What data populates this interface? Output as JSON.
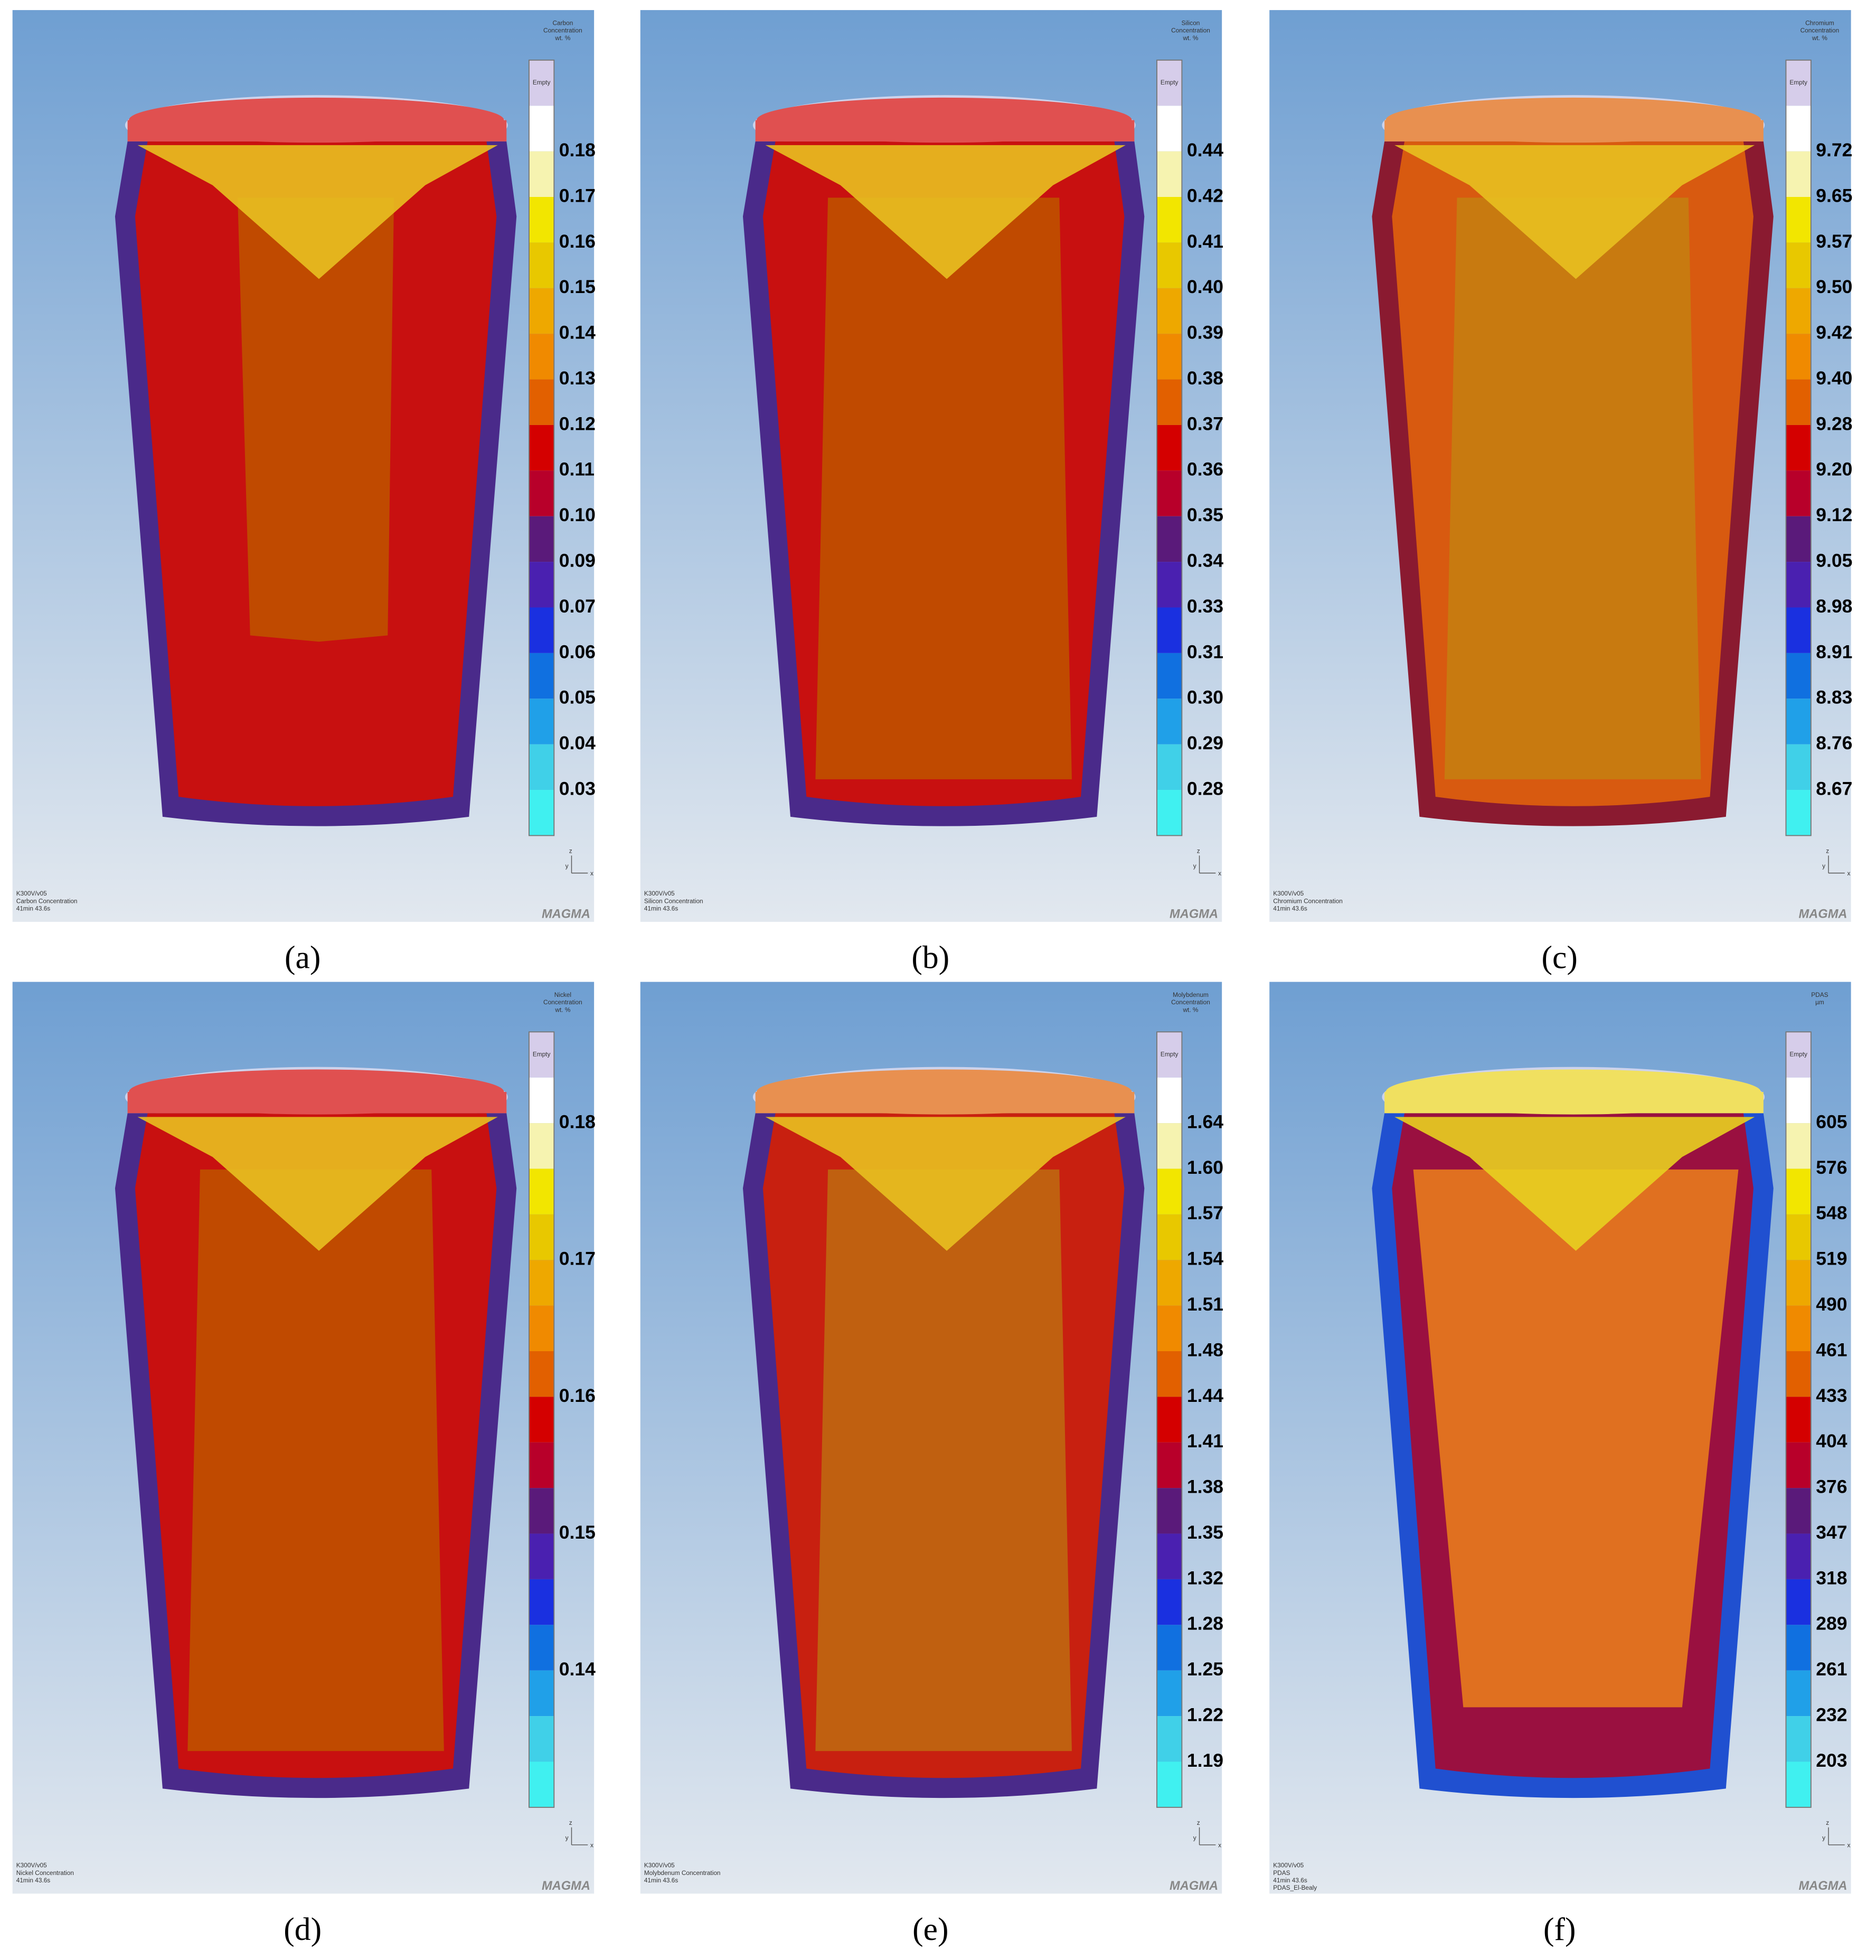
{
  "panels": [
    {
      "caption": "(a)",
      "legend_title": [
        "Carbon",
        "Concentration",
        "wt. %"
      ],
      "empty": "Empty",
      "legend_labels": [
        "0.18",
        "0.17",
        "0.16",
        "0.15",
        "0.14",
        "0.13",
        "0.12",
        "0.11",
        "0.10",
        "0.09",
        "0.07",
        "0.06",
        "0.05",
        "0.04",
        "0.03"
      ],
      "axes": [
        "z",
        "y",
        "x"
      ],
      "footer": [
        "K300V/v05",
        "Carbon Concentration",
        "41min 43.6s"
      ],
      "logo": "MAGMA"
    },
    {
      "caption": "(b)",
      "legend_title": [
        "Silicon",
        "Concentration",
        "wt. %"
      ],
      "empty": "Empty",
      "legend_labels": [
        "0.44",
        "0.42",
        "0.41",
        "0.40",
        "0.39",
        "0.38",
        "0.37",
        "0.36",
        "0.35",
        "0.34",
        "0.33",
        "0.31",
        "0.30",
        "0.29",
        "0.28"
      ],
      "axes": [
        "z",
        "y",
        "x"
      ],
      "footer": [
        "K300V/v05",
        "Silicon Concentration",
        "41min 43.6s"
      ],
      "logo": "MAGMA"
    },
    {
      "caption": "(c)",
      "legend_title": [
        "Chromium",
        "Concentration",
        "wt. %"
      ],
      "empty": "Empty",
      "legend_labels": [
        "9.72",
        "9.65",
        "9.57",
        "9.50",
        "9.42",
        "9.40",
        "9.28",
        "9.20",
        "9.12",
        "9.05",
        "8.98",
        "8.91",
        "8.83",
        "8.76",
        "8.67"
      ],
      "axes": [
        "z",
        "y",
        "x"
      ],
      "footer": [
        "K300V/v05",
        "Chromium Concentration",
        "41min 43.6s"
      ],
      "logo": "MAGMA"
    },
    {
      "caption": "(d)",
      "legend_title": [
        "Nickel",
        "Concentration",
        "wt. %"
      ],
      "empty": "Empty",
      "legend_labels": [
        "0.18",
        null,
        null,
        "0.17",
        null,
        null,
        "0.16",
        null,
        null,
        "0.15",
        null,
        null,
        "0.14",
        null,
        null
      ],
      "axes": [
        "z",
        "y",
        "x"
      ],
      "footer": [
        "K300V/v05",
        "Nickel Concentration",
        "41min 43.6s"
      ],
      "logo": "MAGMA"
    },
    {
      "caption": "(e)",
      "legend_title": [
        "Molybdenum",
        "Concentration",
        "wt. %"
      ],
      "empty": "Empty",
      "legend_labels": [
        "1.64",
        "1.60",
        "1.57",
        "1.54",
        "1.51",
        "1.48",
        "1.44",
        "1.41",
        "1.38",
        "1.35",
        "1.32",
        "1.28",
        "1.25",
        "1.22",
        "1.19"
      ],
      "axes": [
        "z",
        "y",
        "x"
      ],
      "footer": [
        "K300V/v05",
        "Molybdenum Concentration",
        "41min 43.6s"
      ],
      "logo": "MAGMA"
    },
    {
      "caption": "(f)",
      "legend_title": [
        "PDAS",
        "µm"
      ],
      "empty": "Empty",
      "legend_labels": [
        "605",
        "576",
        "548",
        "519",
        "490",
        "461",
        "433",
        "404",
        "376",
        "347",
        "318",
        "289",
        "261",
        "232",
        "203"
      ],
      "axes": [
        "z",
        "y",
        "x"
      ],
      "footer": [
        "K300V/v05",
        "PDAS",
        "41min 43.6s",
        "PDAS_El-Bealy"
      ],
      "logo": "MAGMA"
    }
  ]
}
